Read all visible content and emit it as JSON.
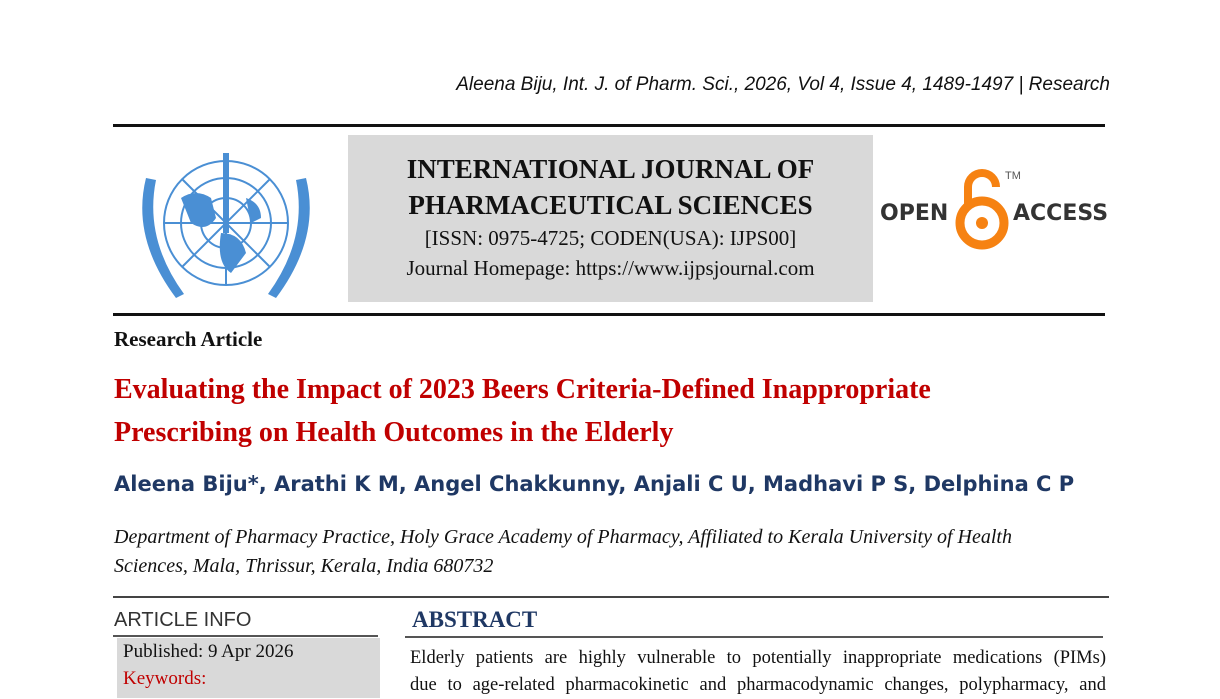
{
  "running_header": "Aleena Biju, Int. J. of Pharm. Sci., 2026, Vol 4, Issue 4, 1489-1497 | Research",
  "journal": {
    "name_line1": "INTERNATIONAL JOURNAL OF",
    "name_line2": "PHARMACEUTICAL SCIENCES",
    "issn": "[ISSN: 0975-4725; CODEN(USA): IJPS00]",
    "homepage": "Journal Homepage: https://www.ijpsjournal.com",
    "logo_icon": "un-style-globe-wreath-logo",
    "open_access_left": "OPEN",
    "open_access_right": "ACCESS",
    "open_access_tm": "TM"
  },
  "article_type": "Research Article",
  "title_line1": "Evaluating the Impact of 2023 Beers Criteria-Defined Inappropriate",
  "title_line2": "Prescribing on Health Outcomes in the Elderly",
  "authors": "Aleena Biju*, Arathi K M, Angel Chakkunny, Anjali C U, Madhavi P S, Delphina C P",
  "affiliation_line1": "Department of Pharmacy Practice, Holy Grace Academy of Pharmacy, Affiliated to Kerala University of Health",
  "affiliation_line2": "Sciences, Mala, Thrissur, Kerala, India 680732",
  "article_info": {
    "heading": "ARTICLE INFO",
    "published": "Published:  9 Apr 2026",
    "keywords_label": "Keywords:"
  },
  "abstract": {
    "heading": "ABSTRACT",
    "line1": "Elderly patients are highly vulnerable to potentially inappropriate medications (PIMs)",
    "line2": "due to age-related pharmacokinetic and pharmacodynamic changes, polypharmacy, and"
  },
  "colors": {
    "title_red": "#c00000",
    "navy": "#1f3864",
    "oa_orange": "#f68212",
    "logo_blue": "#4a8fd4"
  }
}
